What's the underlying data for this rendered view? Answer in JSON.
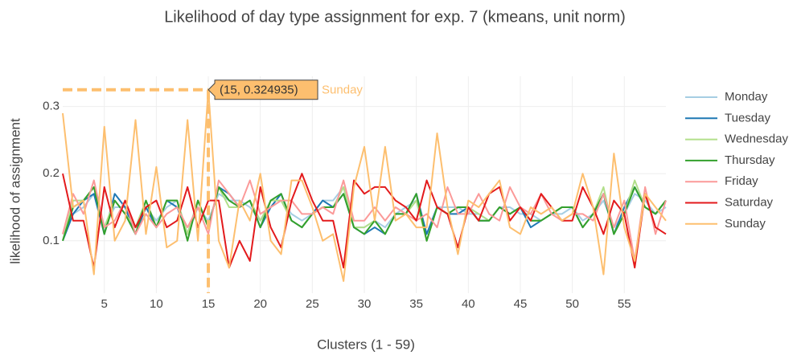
{
  "chart_data": {
    "type": "line",
    "title": "Likelihood of day type assignment for exp. 7 (kmeans, unit norm)",
    "x_label": "Clusters (1 - 59)",
    "y_label": "likelihood of assignment",
    "x": [
      1,
      2,
      3,
      4,
      5,
      6,
      7,
      8,
      9,
      10,
      11,
      12,
      13,
      14,
      15,
      16,
      17,
      18,
      19,
      20,
      21,
      22,
      23,
      24,
      25,
      26,
      27,
      28,
      29,
      30,
      31,
      32,
      33,
      34,
      35,
      36,
      37,
      38,
      39,
      40,
      41,
      42,
      43,
      44,
      45,
      46,
      47,
      48,
      49,
      50,
      51,
      52,
      53,
      54,
      55,
      56,
      57,
      58,
      59
    ],
    "xlim": [
      1,
      59
    ],
    "ylim": [
      0.022,
      0.345
    ],
    "xticks": [
      5,
      10,
      15,
      20,
      25,
      30,
      35,
      40,
      45,
      50,
      55
    ],
    "yticks": [
      0.1,
      0.2,
      0.3
    ],
    "grid": true,
    "legend": "right",
    "series": [
      {
        "name": "Monday",
        "color": "#a6cee3",
        "values": [
          0.11,
          0.14,
          0.15,
          0.17,
          0.12,
          0.15,
          0.15,
          0.12,
          0.15,
          0.13,
          0.15,
          0.16,
          0.11,
          0.15,
          0.13,
          0.17,
          0.16,
          0.16,
          0.15,
          0.13,
          0.15,
          0.16,
          0.14,
          0.13,
          0.14,
          0.16,
          0.16,
          0.18,
          0.12,
          0.12,
          0.13,
          0.12,
          0.14,
          0.15,
          0.16,
          0.11,
          0.15,
          0.15,
          0.15,
          0.14,
          0.14,
          0.13,
          0.15,
          0.15,
          0.14,
          0.14,
          0.13,
          0.14,
          0.14,
          0.15,
          0.13,
          0.14,
          0.16,
          0.12,
          0.14,
          0.17,
          0.16,
          0.14,
          0.15
        ]
      },
      {
        "name": "Tuesday",
        "color": "#1f78b4",
        "values": [
          0.1,
          0.14,
          0.16,
          0.17,
          0.11,
          0.17,
          0.15,
          0.11,
          0.15,
          0.12,
          0.16,
          0.15,
          0.11,
          0.16,
          0.12,
          0.18,
          0.17,
          0.15,
          0.16,
          0.12,
          0.15,
          0.17,
          0.13,
          0.12,
          0.14,
          0.16,
          0.15,
          0.17,
          0.12,
          0.11,
          0.12,
          0.11,
          0.14,
          0.14,
          0.17,
          0.11,
          0.15,
          0.14,
          0.14,
          0.15,
          0.13,
          0.13,
          0.15,
          0.14,
          0.15,
          0.12,
          0.13,
          0.14,
          0.15,
          0.15,
          0.12,
          0.14,
          0.17,
          0.11,
          0.15,
          0.18,
          0.15,
          0.14,
          0.16
        ]
      },
      {
        "name": "Wednesday",
        "color": "#b2df8a",
        "values": [
          0.1,
          0.16,
          0.16,
          0.18,
          0.12,
          0.16,
          0.14,
          0.12,
          0.16,
          0.12,
          0.16,
          0.16,
          0.11,
          0.16,
          0.12,
          0.18,
          0.15,
          0.15,
          0.16,
          0.13,
          0.16,
          0.16,
          0.13,
          0.12,
          0.14,
          0.15,
          0.15,
          0.18,
          0.12,
          0.12,
          0.13,
          0.11,
          0.14,
          0.14,
          0.16,
          0.1,
          0.15,
          0.14,
          0.15,
          0.15,
          0.14,
          0.13,
          0.15,
          0.14,
          0.15,
          0.13,
          0.13,
          0.14,
          0.15,
          0.15,
          0.12,
          0.14,
          0.18,
          0.11,
          0.14,
          0.19,
          0.15,
          0.14,
          0.16
        ]
      },
      {
        "name": "Thursday",
        "color": "#33a02c",
        "values": [
          0.1,
          0.15,
          0.16,
          0.18,
          0.11,
          0.16,
          0.14,
          0.11,
          0.16,
          0.12,
          0.16,
          0.16,
          0.1,
          0.16,
          0.12,
          0.18,
          0.16,
          0.15,
          0.16,
          0.12,
          0.16,
          0.17,
          0.13,
          0.12,
          0.14,
          0.15,
          0.15,
          0.17,
          0.12,
          0.11,
          0.13,
          0.11,
          0.14,
          0.14,
          0.17,
          0.1,
          0.15,
          0.14,
          0.15,
          0.15,
          0.13,
          0.13,
          0.15,
          0.14,
          0.15,
          0.13,
          0.13,
          0.14,
          0.15,
          0.15,
          0.12,
          0.14,
          0.17,
          0.11,
          0.14,
          0.18,
          0.15,
          0.14,
          0.16
        ]
      },
      {
        "name": "Friday",
        "color": "#fb9a99",
        "values": [
          0.11,
          0.17,
          0.14,
          0.19,
          0.12,
          0.13,
          0.16,
          0.11,
          0.14,
          0.12,
          0.14,
          0.15,
          0.12,
          0.15,
          0.11,
          0.19,
          0.17,
          0.15,
          0.19,
          0.14,
          0.15,
          0.16,
          0.16,
          0.14,
          0.14,
          0.15,
          0.14,
          0.19,
          0.13,
          0.13,
          0.15,
          0.13,
          0.15,
          0.14,
          0.13,
          0.14,
          0.12,
          0.18,
          0.14,
          0.14,
          0.17,
          0.14,
          0.13,
          0.18,
          0.15,
          0.14,
          0.17,
          0.14,
          0.13,
          0.14,
          0.14,
          0.13,
          0.17,
          0.12,
          0.16,
          0.07,
          0.18,
          0.11,
          0.16
        ]
      },
      {
        "name": "Saturday",
        "color": "#e31a1c",
        "values": [
          0.2,
          0.13,
          0.13,
          0.06,
          0.18,
          0.12,
          0.16,
          0.12,
          0.15,
          0.16,
          0.12,
          0.13,
          0.18,
          0.12,
          0.16,
          0.16,
          0.06,
          0.1,
          0.07,
          0.18,
          0.12,
          0.09,
          0.16,
          0.2,
          0.16,
          0.13,
          0.13,
          0.06,
          0.19,
          0.17,
          0.18,
          0.18,
          0.16,
          0.15,
          0.13,
          0.19,
          0.15,
          0.14,
          0.09,
          0.15,
          0.13,
          0.17,
          0.18,
          0.13,
          0.15,
          0.13,
          0.17,
          0.15,
          0.13,
          0.13,
          0.18,
          0.15,
          0.11,
          0.16,
          0.14,
          0.06,
          0.17,
          0.12,
          0.11
        ]
      },
      {
        "name": "Sunday",
        "color": "#fdbf6f",
        "values": [
          0.29,
          0.15,
          0.16,
          0.05,
          0.27,
          0.1,
          0.13,
          0.28,
          0.11,
          0.21,
          0.09,
          0.1,
          0.28,
          0.1,
          0.324935,
          0.1,
          0.06,
          0.16,
          0.13,
          0.2,
          0.1,
          0.08,
          0.19,
          0.19,
          0.15,
          0.1,
          0.11,
          0.04,
          0.18,
          0.24,
          0.13,
          0.24,
          0.13,
          0.14,
          0.12,
          0.12,
          0.26,
          0.15,
          0.08,
          0.16,
          0.15,
          0.17,
          0.19,
          0.12,
          0.11,
          0.15,
          0.14,
          0.15,
          0.13,
          0.14,
          0.2,
          0.15,
          0.05,
          0.23,
          0.12,
          0.07,
          0.17,
          0.15,
          0.13
        ]
      }
    ],
    "hover": {
      "x": 15,
      "y": 0.324935,
      "label": "(15, 0.324935)",
      "series": "Sunday"
    }
  }
}
